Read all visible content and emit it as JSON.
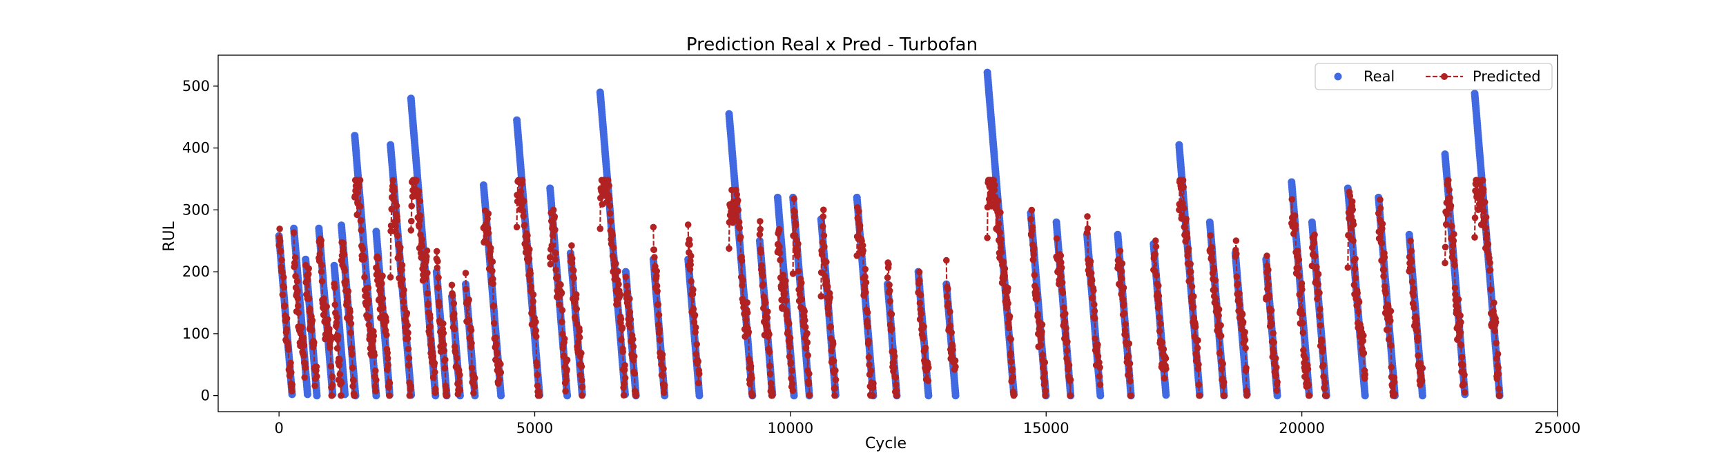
{
  "chart_data": {
    "type": "line",
    "title": "Prediction Real x Pred - Turbofan",
    "xlabel": "Cycle",
    "ylabel": "RUL",
    "xlim": [
      -1190,
      25000
    ],
    "ylim": [
      -26,
      550
    ],
    "xticks": [
      0,
      5000,
      10000,
      15000,
      20000,
      25000
    ],
    "yticks": [
      0,
      100,
      200,
      300,
      400,
      500
    ],
    "legend_position": "top-right",
    "grid": false,
    "colors": {
      "real": "#4169e1",
      "predicted": "#b22222"
    },
    "series": [
      {
        "name": "Real",
        "style": "markers",
        "segments": [
          [
            0,
            258,
            258
          ],
          [
            290,
            270,
            12
          ],
          [
            520,
            220,
            10
          ],
          [
            780,
            270,
            12
          ],
          [
            1080,
            210,
            10
          ],
          [
            1220,
            275,
            10
          ],
          [
            1480,
            420,
            20
          ],
          [
            1900,
            265,
            10
          ],
          [
            2180,
            405,
            18
          ],
          [
            2580,
            480,
            20
          ],
          [
            3080,
            200,
            8
          ],
          [
            3380,
            160,
            8
          ],
          [
            3650,
            180,
            8
          ],
          [
            4000,
            340,
            14
          ],
          [
            4650,
            445,
            18
          ],
          [
            5300,
            335,
            14
          ],
          [
            5700,
            230,
            10
          ],
          [
            6280,
            490,
            20
          ],
          [
            6780,
            200,
            8
          ],
          [
            7320,
            220,
            10
          ],
          [
            8000,
            220,
            10
          ],
          [
            8800,
            455,
            18
          ],
          [
            9400,
            250,
            10
          ],
          [
            9750,
            320,
            14
          ],
          [
            10050,
            320,
            14
          ],
          [
            10600,
            285,
            12
          ],
          [
            11300,
            320,
            14
          ],
          [
            11900,
            180,
            8
          ],
          [
            12500,
            200,
            8
          ],
          [
            13050,
            180,
            8
          ],
          [
            13850,
            522,
            24
          ],
          [
            14700,
            295,
            12
          ],
          [
            15200,
            280,
            12
          ],
          [
            15800,
            260,
            10
          ],
          [
            16400,
            260,
            10
          ],
          [
            17100,
            245,
            10
          ],
          [
            17600,
            405,
            18
          ],
          [
            18200,
            280,
            12
          ],
          [
            18700,
            230,
            10
          ],
          [
            19300,
            220,
            10
          ],
          [
            19800,
            345,
            14
          ],
          [
            20200,
            280,
            12
          ],
          [
            20900,
            335,
            14
          ],
          [
            21500,
            320,
            14
          ],
          [
            22100,
            260,
            10
          ],
          [
            22800,
            390,
            16
          ],
          [
            23380,
            488,
            20
          ]
        ]
      },
      {
        "name": "Predicted",
        "style": "dashed line with markers"
      }
    ]
  }
}
